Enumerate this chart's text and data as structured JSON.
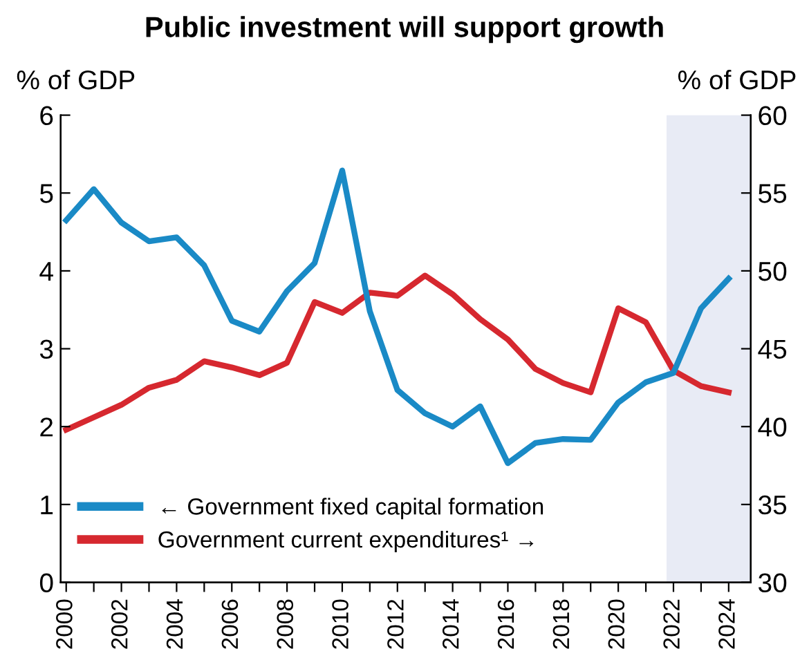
{
  "chart_data": {
    "type": "line",
    "title": "Public investment will support growth",
    "ylabel": "% of GDP",
    "y2label": "% of GDP",
    "x": [
      2000,
      2001,
      2002,
      2003,
      2004,
      2005,
      2006,
      2007,
      2008,
      2009,
      2010,
      2011,
      2012,
      2013,
      2014,
      2015,
      2016,
      2017,
      2018,
      2019,
      2020,
      2021,
      2022,
      2023,
      2024
    ],
    "series": [
      {
        "name": "← Government fixed capital formation",
        "color": "#1a8ac6",
        "values": [
          4.65,
          5.05,
          4.62,
          4.38,
          4.43,
          4.07,
          3.36,
          3.22,
          3.74,
          4.1,
          5.29,
          3.48,
          2.47,
          2.17,
          2.0,
          2.26,
          1.53,
          1.79,
          1.84,
          1.83,
          2.31,
          2.57,
          2.69,
          3.52,
          3.9
        ]
      },
      {
        "name": "Government current expenditures¹ →",
        "color": "#d6282f",
        "axis": "y2",
        "values": [
          39.8,
          40.6,
          41.4,
          42.5,
          43.0,
          44.2,
          43.8,
          43.3,
          44.1,
          48.0,
          47.3,
          48.6,
          48.4,
          49.7,
          48.5,
          46.9,
          45.6,
          43.7,
          42.8,
          42.2,
          47.6,
          46.7,
          43.6,
          42.6,
          42.2
        ]
      }
    ],
    "xlim": [
      1999.8,
      2024.8
    ],
    "xticks": [
      2000,
      {
        "value": 2001,
        "label": null
      },
      2002,
      {
        "value": 2003,
        "label": null
      },
      2004,
      {
        "value": 2005,
        "label": null
      },
      2006,
      {
        "value": 2007,
        "label": null
      },
      2008,
      {
        "value": 2009,
        "label": null
      },
      2010,
      {
        "value": 2011,
        "label": null
      },
      2012,
      {
        "value": 2013,
        "label": null
      },
      2014,
      {
        "value": 2015,
        "label": null
      },
      2016,
      {
        "value": 2017,
        "label": null
      },
      2018,
      {
        "value": 2019,
        "label": null
      },
      2020,
      {
        "value": 2021,
        "label": null
      },
      2022,
      {
        "value": 2023,
        "label": null
      },
      2024
    ],
    "ylim": [
      0,
      6
    ],
    "yticks": [
      0,
      1,
      2,
      3,
      4,
      5,
      6
    ],
    "y2lim": [
      30,
      60
    ],
    "y2ticks": [
      30,
      35,
      40,
      45,
      50,
      55,
      60
    ],
    "bands": [
      {
        "axis": "x",
        "from": 2021.75,
        "to": 2024.8,
        "color": "#e8ebf5"
      }
    ],
    "legend": "bottom left",
    "grid": false,
    "marker": "none",
    "line_style": "solid"
  }
}
